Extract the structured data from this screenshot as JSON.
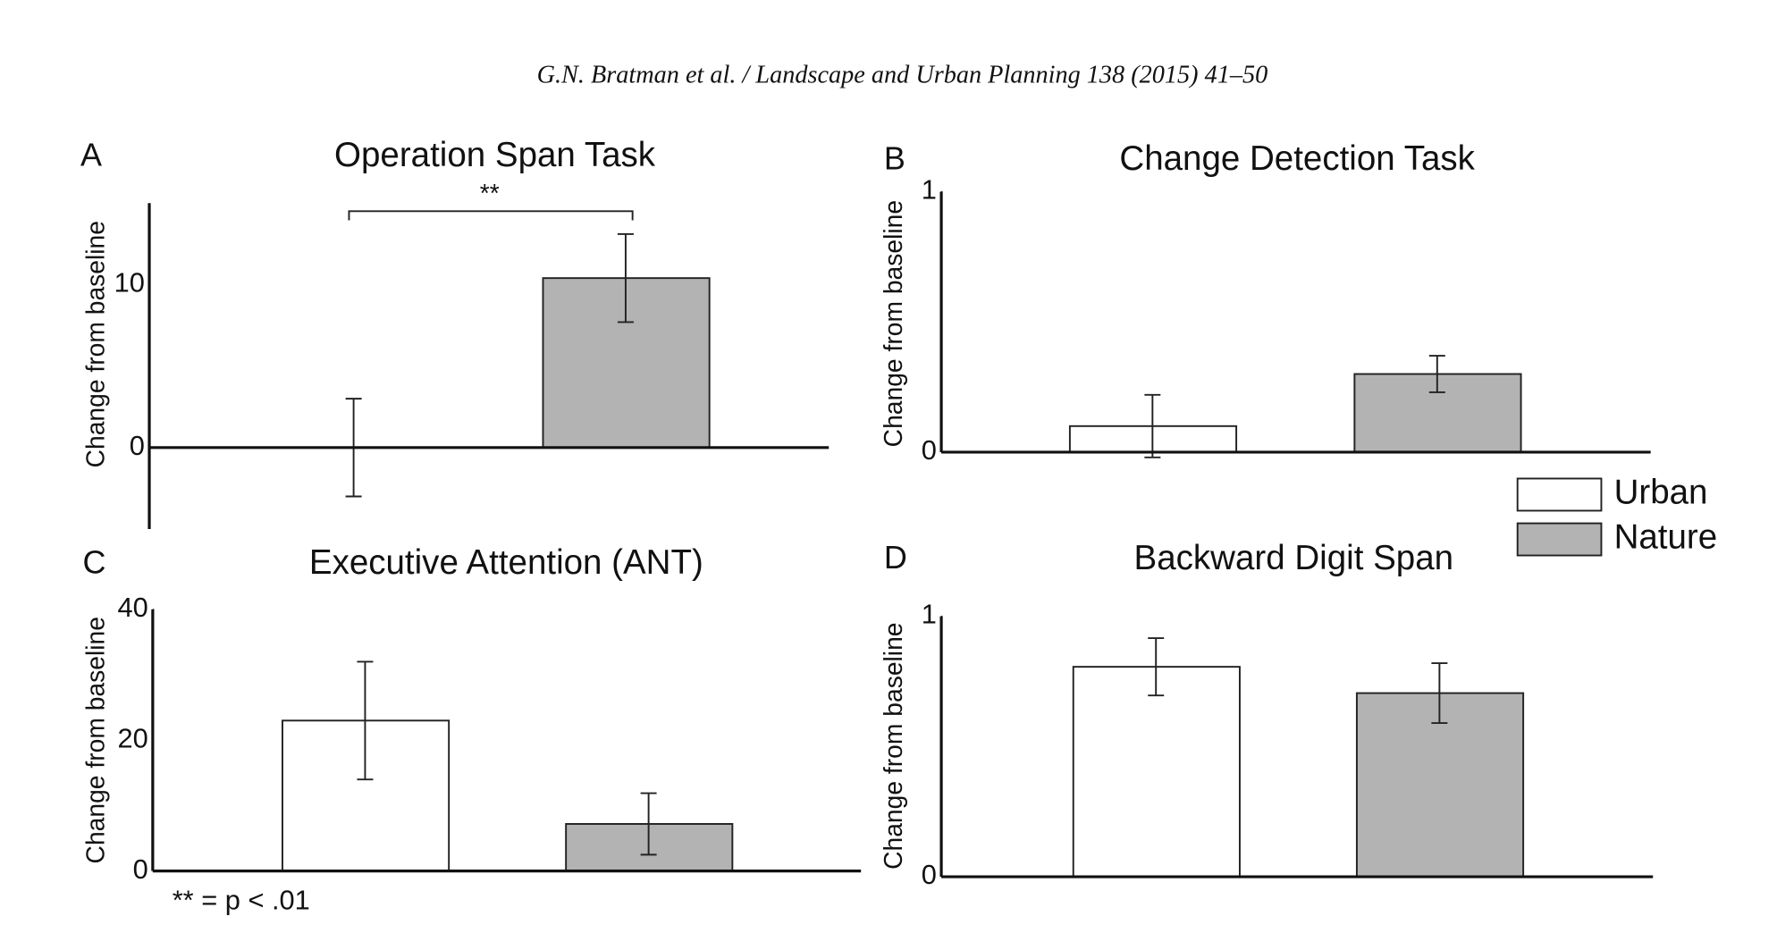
{
  "header": "G.N. Bratman et al. / Landscape and Urban Planning 138 (2015) 41–50",
  "footnote": "** = p < .01",
  "legend": [
    {
      "name": "Urban",
      "color": "#ffffff"
    },
    {
      "name": "Nature",
      "color": "#b3b3b3"
    }
  ],
  "chart_data": [
    {
      "type": "bar",
      "panel": "A",
      "title": "Operation Span Task",
      "y_label": "Change from baseline",
      "values": [
        0,
        10.4
      ],
      "errors": [
        3,
        2.7
      ],
      "ylim": [
        -5,
        15
      ],
      "yticks": [
        0,
        10
      ],
      "annotations": [
        {
          "text": "**"
        }
      ]
    },
    {
      "type": "bar",
      "panel": "B",
      "title": "Change Detection Task",
      "y_label": "Change from baseline",
      "values": [
        0.1,
        0.3
      ],
      "errors": [
        0.12,
        0.07
      ],
      "ylim": [
        0,
        1
      ],
      "yticks": [
        0,
        1
      ]
    },
    {
      "type": "bar",
      "panel": "C",
      "title": "Executive Attention (ANT)",
      "y_label": "Change from baseline",
      "values": [
        23,
        7.2
      ],
      "errors": [
        9,
        4.7
      ],
      "ylim": [
        0,
        40
      ],
      "yticks": [
        0,
        20,
        40
      ]
    },
    {
      "type": "bar",
      "panel": "D",
      "title": "Backward Digit Span",
      "y_label": "Change from baseline",
      "values": [
        0.806,
        0.705
      ],
      "errors": [
        0.11,
        0.115
      ],
      "ylim": [
        0,
        1
      ],
      "yticks": [
        0,
        1
      ]
    }
  ]
}
